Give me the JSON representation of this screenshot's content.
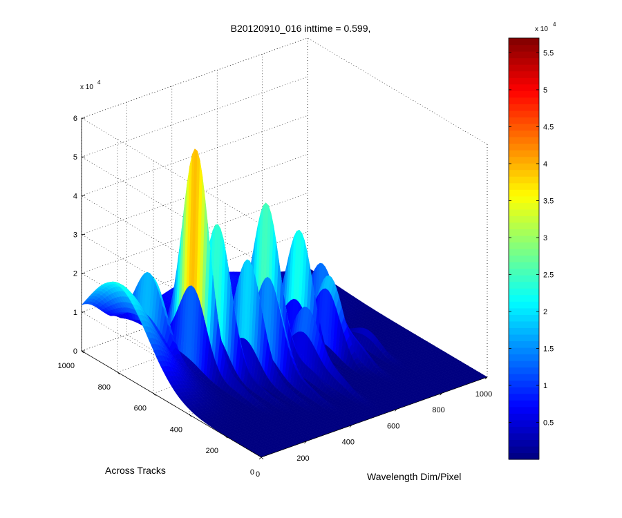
{
  "chart_data": {
    "type": "surface",
    "title": "B20120910_016 inttime = 0.599,",
    "xlabel": "Wavelength Dim/Pixel",
    "ylabel": "Across Tracks",
    "zlabel": "",
    "xlim": [
      0,
      1000
    ],
    "ylim": [
      0,
      1000
    ],
    "zlim": [
      0,
      60000
    ],
    "x_ticks": [
      "0",
      "200",
      "400",
      "600",
      "800",
      "1000"
    ],
    "y_ticks": [
      "0",
      "200",
      "400",
      "600",
      "800",
      "1000"
    ],
    "z_ticks": [
      "0",
      "1",
      "2",
      "3",
      "4",
      "5",
      "6"
    ],
    "z_exponent_label": "x 10",
    "z_exponent_power": "4",
    "grid": true,
    "colormap": "jet",
    "colorbar": {
      "range": [
        0,
        57000
      ],
      "ticks": [
        "0.5",
        "1",
        "1.5",
        "2",
        "2.5",
        "3",
        "3.5",
        "4",
        "4.5",
        "5",
        "5.5"
      ],
      "exponent_label": "x 10",
      "exponent_power": "4"
    },
    "background_hump": {
      "x_center": 0,
      "y_center": 800,
      "peak": 22000
    },
    "peaks": [
      {
        "x": 150,
        "y": 800,
        "z": 18000
      },
      {
        "x": 230,
        "y": 650,
        "z": 56000
      },
      {
        "x": 230,
        "y": 420,
        "z": 3000
      },
      {
        "x": 290,
        "y": 600,
        "z": 40000
      },
      {
        "x": 290,
        "y": 380,
        "z": 2000
      },
      {
        "x": 360,
        "y": 520,
        "z": 30000
      },
      {
        "x": 360,
        "y": 320,
        "z": 2000
      },
      {
        "x": 420,
        "y": 480,
        "z": 28000
      },
      {
        "x": 420,
        "y": 280,
        "z": 2500
      },
      {
        "x": 490,
        "y": 580,
        "z": 42000
      },
      {
        "x": 490,
        "y": 350,
        "z": 3500
      },
      {
        "x": 540,
        "y": 430,
        "z": 16000
      },
      {
        "x": 540,
        "y": 250,
        "z": 3000
      },
      {
        "x": 600,
        "y": 540,
        "z": 31000
      },
      {
        "x": 680,
        "y": 480,
        "z": 22000
      },
      {
        "x": 720,
        "y": 560,
        "z": 22000
      },
      {
        "x": 720,
        "y": 380,
        "z": 5000
      },
      {
        "x": 810,
        "y": 430,
        "z": 4500
      }
    ]
  }
}
